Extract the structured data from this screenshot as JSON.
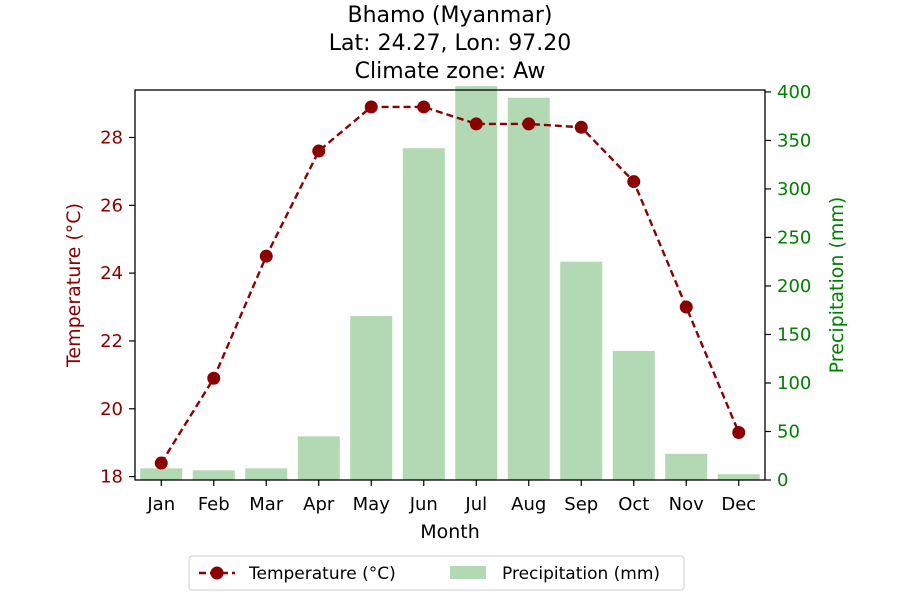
{
  "chart_data": {
    "type": "bar+line",
    "title_lines": [
      "Bhamo (Myanmar)",
      "Lat: 24.27, Lon: 97.20",
      "Climate zone: Aw"
    ],
    "categories": [
      "Jan",
      "Feb",
      "Mar",
      "Apr",
      "May",
      "Jun",
      "Jul",
      "Aug",
      "Sep",
      "Oct",
      "Nov",
      "Dec"
    ],
    "xlabel": "Month",
    "ylabel_left": "Temperature (°C)",
    "ylabel_right": "Precipitation (mm)",
    "ylim_left": [
      17.9,
      29.4
    ],
    "ylim_right": [
      0,
      402
    ],
    "yticks_left": [
      18,
      20,
      22,
      24,
      26,
      28
    ],
    "yticks_right": [
      0,
      50,
      100,
      150,
      200,
      250,
      300,
      350,
      400
    ],
    "series": [
      {
        "name": "Temperature (°C)",
        "kind": "line",
        "axis": "left",
        "color": "#8b0000",
        "style": "dashed",
        "marker": "circle",
        "values": [
          18.4,
          20.9,
          24.5,
          27.6,
          28.9,
          28.9,
          28.4,
          28.4,
          28.3,
          26.7,
          23.0,
          19.3
        ]
      },
      {
        "name": "Precipitation (mm)",
        "kind": "bar",
        "axis": "right",
        "color": "#b2d9b4",
        "values": [
          12,
          10,
          12,
          45,
          169,
          342,
          406,
          394,
          225,
          133,
          27,
          6
        ]
      }
    ],
    "legend": {
      "placement": "bottom-center",
      "entries": [
        "Temperature (°C)",
        "Precipitation (mm)"
      ]
    },
    "colors": {
      "left_axis": "#8b0000",
      "right_axis": "#008000"
    },
    "grid": false
  }
}
